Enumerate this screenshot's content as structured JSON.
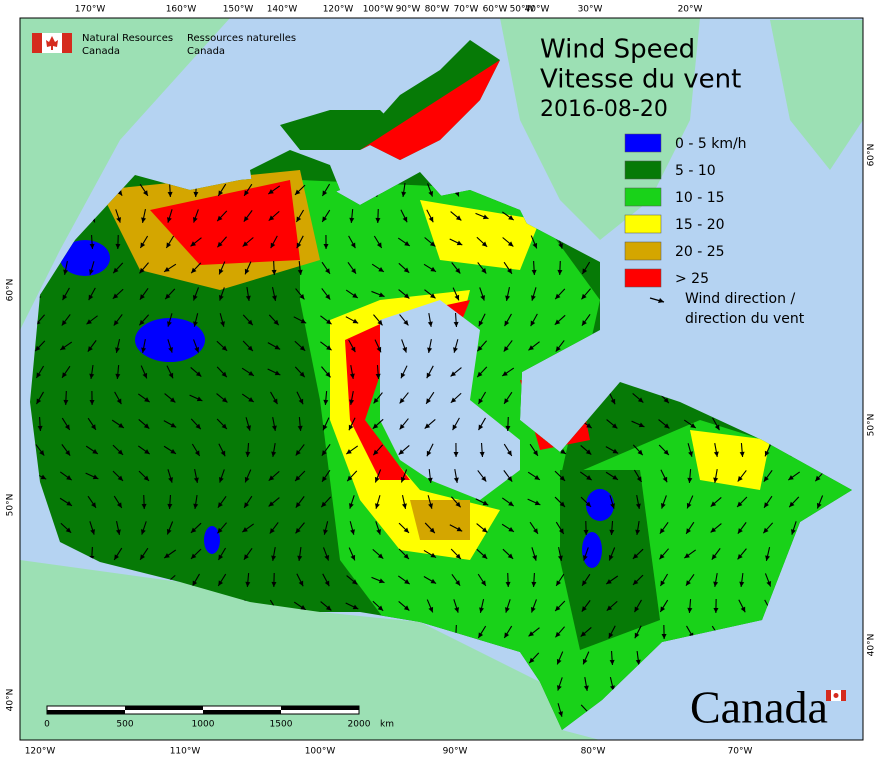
{
  "header": {
    "agency_en": [
      "Natural Resources",
      "Canada"
    ],
    "agency_fr": [
      "Ressources naturelles",
      "Canada"
    ]
  },
  "title": {
    "line1": "Wind Speed",
    "line2": "Vitesse du vent",
    "date": "2016-08-20"
  },
  "legend": {
    "items": [
      {
        "label": "0 - 5 km/h",
        "color": "#0000ff"
      },
      {
        "label": "5 - 10",
        "color": "#067a06"
      },
      {
        "label": "10 - 15",
        "color": "#19d219"
      },
      {
        "label": "15 - 20",
        "color": "#ffff00"
      },
      {
        "label": "20 - 25",
        "color": "#d4a600"
      },
      {
        "label": "> 25",
        "color": "#ff0000"
      }
    ],
    "arrow_label": [
      "Wind direction /",
      "direction du vent"
    ]
  },
  "graticule": {
    "top": [
      "170°W",
      "160°W",
      "150°W",
      "140°W",
      "120°W",
      "100°W",
      "90°W",
      "80°W",
      "70°W",
      "60°W",
      "50°W",
      "40°W",
      "30°W",
      "20°W"
    ],
    "bottom": [
      "120°W",
      "110°W",
      "100°W",
      "90°W",
      "80°W",
      "70°W"
    ],
    "left": [
      "60°N",
      "50°N",
      "40°N"
    ],
    "right": [
      "60°N",
      "50°N",
      "40°N"
    ]
  },
  "scale_bar": {
    "labels": [
      "0",
      "500",
      "1000",
      "1500",
      "2000"
    ],
    "unit": "km"
  },
  "wordmark": "Canada"
}
